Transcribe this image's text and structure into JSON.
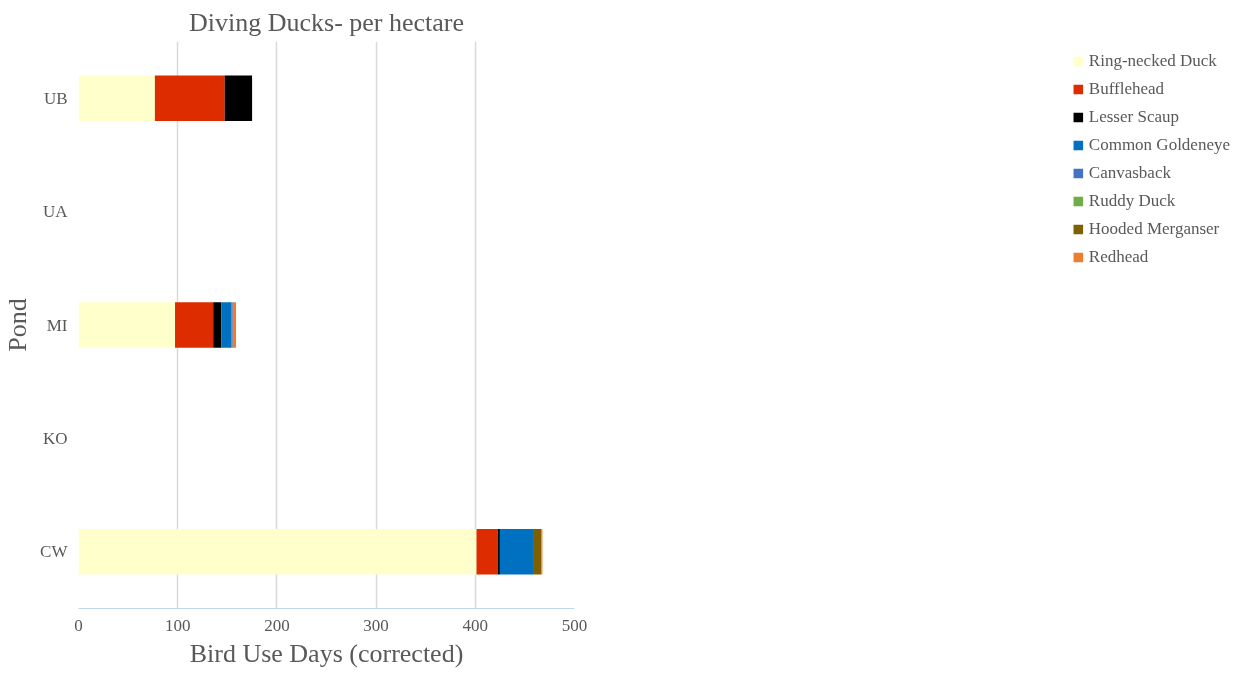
{
  "chart_data": {
    "type": "bar",
    "orientation": "horizontal",
    "stacked": true,
    "title": "Diving Ducks- per hectare",
    "xlabel": "Bird Use Days (corrected)",
    "ylabel": "Pond",
    "categories": [
      "UB",
      "UA",
      "MI",
      "KO",
      "CW"
    ],
    "series": [
      {
        "name": "Ring-necked Duck",
        "color": "#ffffcc",
        "values": [
          77.0,
          0,
          97.3,
          0,
          401.2
        ]
      },
      {
        "name": "Bufflehead",
        "color": "#dd2c00",
        "values": [
          70.4,
          0,
          38.5,
          0,
          21.5
        ]
      },
      {
        "name": "Lesser Scaup",
        "color": "#000000",
        "values": [
          27.6,
          0,
          8.3,
          0,
          2.1
        ]
      },
      {
        "name": "Common Goldeneye",
        "color": "#0070c0",
        "values": [
          0,
          0,
          9.9,
          0,
          33.4
        ]
      },
      {
        "name": "Canvasback",
        "color": "#4472c4",
        "values": [
          0,
          0,
          1.5,
          0,
          0
        ]
      },
      {
        "name": "Ruddy Duck",
        "color": "#70ad47",
        "values": [
          0,
          0,
          0,
          0,
          0
        ]
      },
      {
        "name": "Hooded Merganser",
        "color": "#7f6000",
        "values": [
          0,
          0,
          0,
          0,
          8.3
        ]
      },
      {
        "name": "Redhead",
        "color": "#ed7d31",
        "values": [
          0,
          0,
          3.3,
          0,
          1.2
        ]
      }
    ],
    "xlim": [
      0,
      500
    ],
    "xticks": [
      0,
      100,
      200,
      300,
      400,
      500
    ],
    "grid": "x",
    "legend": "right"
  }
}
